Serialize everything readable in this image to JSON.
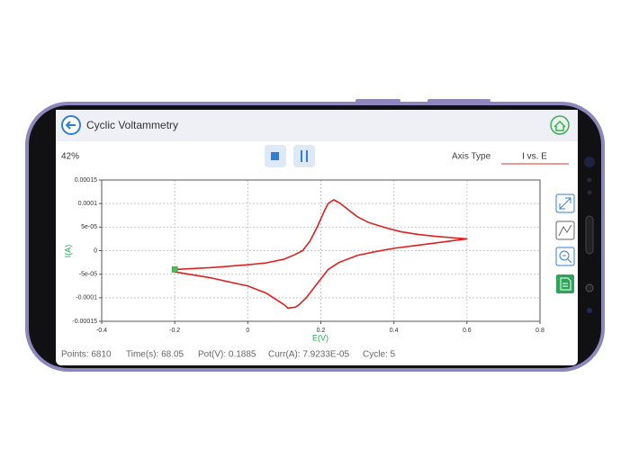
{
  "app": {
    "title": "Cyclic Voltammetry",
    "progress": "42%",
    "axis_type_label": "Axis Type",
    "axis_type_value": "I vs. E"
  },
  "status": [
    "Points: 6810",
    "Time(s): 68.05",
    "Pot(V): 0.1885",
    "Curr(A): 7.9233E-05",
    "Cycle: 5"
  ],
  "chart_data": {
    "type": "line",
    "xlabel": "E(V)",
    "ylabel": "I(A)",
    "xlim": [
      -0.4,
      0.8
    ],
    "xticks": [
      -0.4,
      -0.2,
      0,
      0.2,
      0.4,
      0.6,
      0.8
    ],
    "ylim": [
      -0.00015,
      0.00015
    ],
    "yticks": [
      -0.00015,
      -0.0001,
      {
        "value": -5e-05,
        "label": "-5e-05"
      },
      0,
      {
        "value": 5e-05,
        "label": "5e-05"
      },
      0.0001,
      0.00015
    ],
    "grid": true,
    "series": [
      {
        "color": "#e02020",
        "x": [
          -0.2,
          -0.1,
          0,
          0.05,
          0.1,
          0.13,
          0.15,
          0.17,
          0.19,
          0.21,
          0.22,
          0.235,
          0.25,
          0.27,
          0.3,
          0.33,
          0.38,
          0.42,
          0.47,
          0.52,
          0.6,
          0.55,
          0.5,
          0.45,
          0.4,
          0.35,
          0.3,
          0.25,
          0.22,
          0.2,
          0.18,
          0.16,
          0.14,
          0.13,
          0.11,
          0.1,
          0.05,
          0,
          -0.1,
          -0.2
        ],
        "values": [
          -4e-05,
          -3.6e-05,
          -3e-05,
          -2.6e-05,
          -1.8e-05,
          -8e-06,
          0,
          2e-05,
          5e-05,
          8.5e-05,
          0.0001,
          0.000108,
          0.000102,
          9e-05,
          7.2e-05,
          6e-05,
          4.8e-05,
          4e-05,
          3.4e-05,
          3e-05,
          2.5e-05,
          2e-05,
          1.5e-05,
          1e-05,
          5e-06,
          -2e-06,
          -1e-05,
          -2.5e-05,
          -4e-05,
          -6e-05,
          -8e-05,
          -0.0001,
          -0.000115,
          -0.00012,
          -0.000122,
          -0.000115,
          -9e-05,
          -7.5e-05,
          -5.8e-05,
          -4.5e-05
        ]
      }
    ]
  }
}
